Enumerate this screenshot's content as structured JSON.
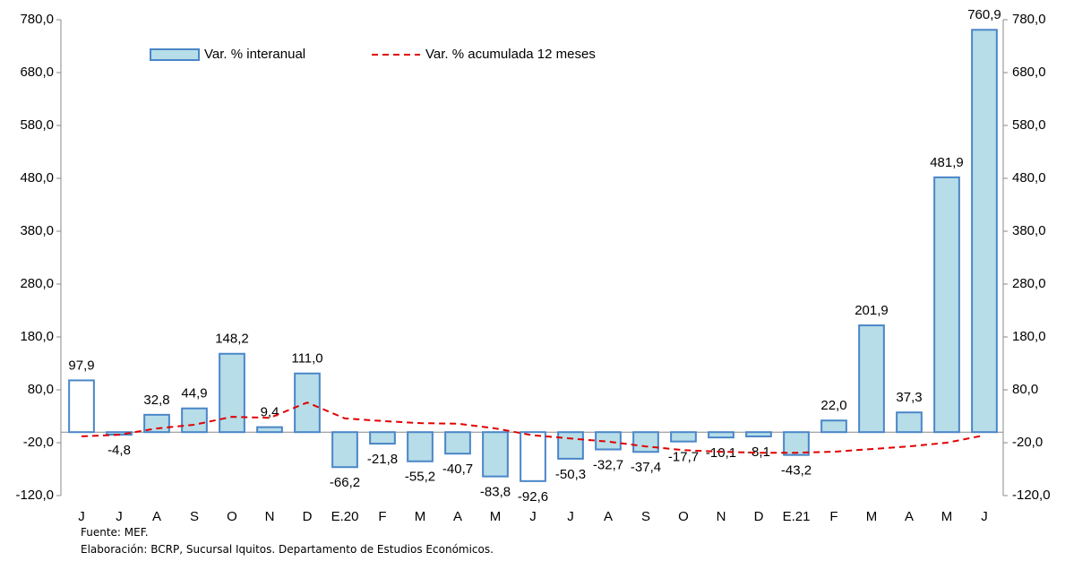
{
  "chart_data": {
    "type": "bar",
    "categories": [
      "J",
      "J",
      "A",
      "S",
      "O",
      "N",
      "D",
      "E.20",
      "F",
      "M",
      "A",
      "M",
      "J",
      "J",
      "A",
      "S",
      "O",
      "N",
      "D",
      "E.21",
      "F",
      "M",
      "A",
      "M",
      "J"
    ],
    "series": [
      {
        "name": "Var. % interanual",
        "type": "bar",
        "color": "#b7dde8",
        "edge_color": "#4a86c8",
        "colors": [
          "#ffffff",
          "#b7dde8",
          "#b7dde8",
          "#b7dde8",
          "#b7dde8",
          "#b7dde8",
          "#b7dde8",
          "#b7dde8",
          "#b7dde8",
          "#b7dde8",
          "#b7dde8",
          "#b7dde8",
          "#ffffff",
          "#b7dde8",
          "#b7dde8",
          "#b7dde8",
          "#b7dde8",
          "#b7dde8",
          "#b7dde8",
          "#b7dde8",
          "#b7dde8",
          "#b7dde8",
          "#b7dde8",
          "#b7dde8",
          "#b7dde8"
        ],
        "values": [
          97.9,
          -4.8,
          32.8,
          44.9,
          148.2,
          9.4,
          111.0,
          -66.2,
          -21.8,
          -55.2,
          -40.7,
          -83.8,
          -92.6,
          -50.3,
          -32.7,
          -37.4,
          -17.7,
          -10.1,
          -8.1,
          -43.2,
          22.0,
          201.9,
          37.3,
          481.9,
          760.9
        ],
        "value_labels": [
          "97,9",
          "-4,8",
          "32,8",
          "44,9",
          "148,2",
          "9,4",
          "111,0",
          "-66,2",
          "-21,8",
          "-55,2",
          "-40,7",
          "-83,8",
          "-92,6",
          "-50,3",
          "-32,7",
          "-37,4",
          "-17,7",
          "-10,1",
          "-8,1",
          "-43,2",
          "22,0",
          "201,9",
          "37,3",
          "481,9",
          "760,9"
        ]
      },
      {
        "name": "Var. % acumulada 12 meses",
        "type": "line",
        "color": "#e00000",
        "dashed": true,
        "values": [
          -8,
          -5,
          7,
          14,
          29,
          27,
          56,
          26,
          21,
          17,
          16,
          7,
          -6,
          -12,
          -18,
          -27,
          -34,
          -37,
          -39,
          -39,
          -37,
          -32,
          -27,
          -20,
          -6
        ]
      }
    ],
    "ylim": [
      -120,
      780
    ],
    "yticks": [
      {
        "value": -120,
        "label": "-120,0"
      },
      {
        "value": -20,
        "label": "-20,0"
      },
      {
        "value": 80,
        "label": "80,0"
      },
      {
        "value": 180,
        "label": "180,0"
      },
      {
        "value": 280,
        "label": "280,0"
      },
      {
        "value": 380,
        "label": "380,0"
      },
      {
        "value": 480,
        "label": "480,0"
      },
      {
        "value": 580,
        "label": "580,0"
      },
      {
        "value": 680,
        "label": "680,0"
      },
      {
        "value": 780,
        "label": "780,0"
      }
    ],
    "y2lim": [
      -120,
      780
    ],
    "y2ticks": [
      {
        "value": -120,
        "label": "-120,0"
      },
      {
        "value": -20,
        "label": "-20,0"
      },
      {
        "value": 80,
        "label": "80,0"
      },
      {
        "value": 180,
        "label": "180,0"
      },
      {
        "value": 280,
        "label": "280,0"
      },
      {
        "value": 380,
        "label": "380,0"
      },
      {
        "value": 480,
        "label": "480,0"
      },
      {
        "value": 580,
        "label": "580,0"
      },
      {
        "value": 680,
        "label": "680,0"
      },
      {
        "value": 780,
        "label": "780,0"
      }
    ],
    "grid": false,
    "legend": "top-left",
    "source": "Fuente: MEF.",
    "note": "Elaboración: BCRP, Sucursal Iquitos. Departamento de Estudios Económicos."
  }
}
